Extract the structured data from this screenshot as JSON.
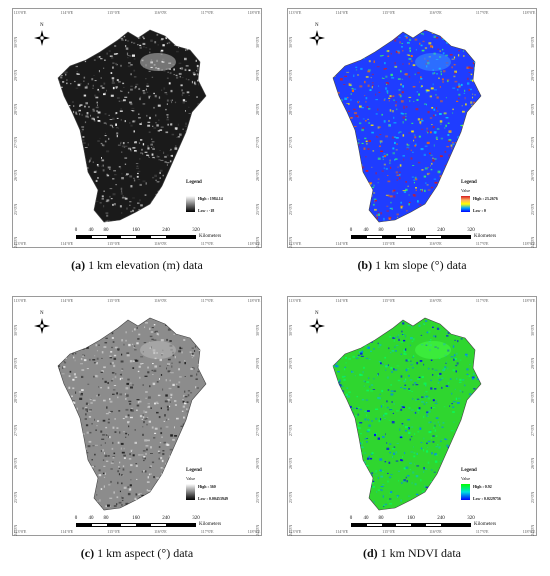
{
  "lon_ticks": [
    "113°0'E",
    "114°0'E",
    "115°0'E",
    "116°0'E",
    "117°0'E",
    "118°0'E"
  ],
  "lat_ticks": [
    "30°0'N",
    "29°0'N",
    "28°0'N",
    "27°0'N",
    "26°0'N",
    "25°0'N",
    "24°0'N"
  ],
  "north_arrow": "N",
  "scale_bar": {
    "labels": [
      "0",
      "40",
      "80",
      "160",
      "240",
      "320"
    ],
    "unit": "Kilometers"
  },
  "panels": [
    {
      "id": "a",
      "letter": "(a)",
      "caption": "1 km elevation (m) data",
      "legend_title": "Legend",
      "legend_sub": "",
      "high": "High : 1984.14",
      "low": "Low : -18",
      "ramp": "linear-gradient(#ffffff,#000000)"
    },
    {
      "id": "b",
      "letter": "(b)",
      "caption": "1 km slope (°) data",
      "legend_title": "Legend",
      "legend_sub": "Value",
      "high": "High : 23.2676",
      "low": "Low : 0",
      "ramp": "linear-gradient(#d7191c,#fdae61,#ffff00,#00a6ff,#0000ff)"
    },
    {
      "id": "c",
      "letter": "(c)",
      "caption": "1 km aspect (°) data",
      "legend_title": "Legend",
      "legend_sub": "Value",
      "high": "High : 360",
      "low": "Low : 0.00453949",
      "ramp": "linear-gradient(#ffffff,#000000)"
    },
    {
      "id": "d",
      "letter": "(d)",
      "caption": "1 km NDVI data",
      "legend_title": "Legend",
      "legend_sub": "Value",
      "high": "High : 0.92",
      "low": "Low : 0.0229756",
      "ramp": "linear-gradient(#00ff00,#00e0e0,#0000ff)"
    }
  ]
}
